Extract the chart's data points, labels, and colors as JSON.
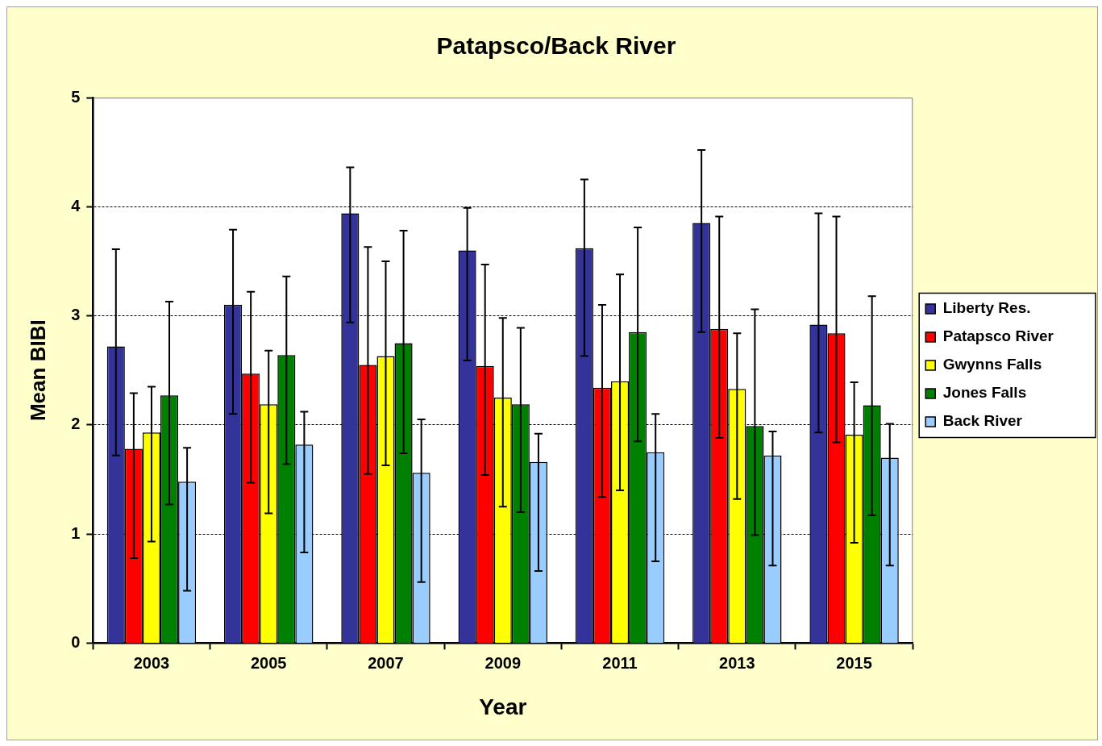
{
  "chart_data": {
    "type": "bar",
    "title": "Patapsco/Back River",
    "xlabel": "Year",
    "ylabel": "Mean BIBI",
    "categories": [
      "2003",
      "2005",
      "2007",
      "2009",
      "2011",
      "2013",
      "2015"
    ],
    "series": [
      {
        "name": "Liberty Res.",
        "color": "#333399",
        "values": [
          2.72,
          3.1,
          3.94,
          3.6,
          3.62,
          3.85,
          2.92
        ],
        "errors": [
          [
            1.72,
            3.61
          ],
          [
            2.1,
            3.79
          ],
          [
            2.94,
            4.36
          ],
          [
            2.59,
            3.99
          ],
          [
            2.63,
            4.25
          ],
          [
            2.85,
            4.52
          ],
          [
            1.93,
            3.94
          ]
        ]
      },
      {
        "name": "Patapsco River",
        "color": "#ff0000",
        "values": [
          1.78,
          2.47,
          2.55,
          2.54,
          2.34,
          2.88,
          2.84
        ],
        "errors": [
          [
            0.78,
            2.29
          ],
          [
            1.47,
            3.22
          ],
          [
            1.55,
            3.63
          ],
          [
            1.54,
            3.47
          ],
          [
            1.34,
            3.1
          ],
          [
            1.88,
            3.91
          ],
          [
            1.84,
            3.91
          ]
        ]
      },
      {
        "name": "Gwynns Falls",
        "color": "#ffff00",
        "values": [
          1.93,
          2.19,
          2.63,
          2.25,
          2.4,
          2.33,
          1.91
        ],
        "errors": [
          [
            0.93,
            2.35
          ],
          [
            1.19,
            2.68
          ],
          [
            1.63,
            3.5
          ],
          [
            1.25,
            2.98
          ],
          [
            1.4,
            3.38
          ],
          [
            1.32,
            2.84
          ],
          [
            0.92,
            2.39
          ]
        ]
      },
      {
        "name": "Jones Falls",
        "color": "#008000",
        "values": [
          2.27,
          2.64,
          2.75,
          2.19,
          2.85,
          1.99,
          2.18
        ],
        "errors": [
          [
            1.27,
            3.13
          ],
          [
            1.64,
            3.36
          ],
          [
            1.74,
            3.78
          ],
          [
            1.2,
            2.89
          ],
          [
            1.85,
            3.81
          ],
          [
            0.99,
            3.06
          ],
          [
            1.17,
            3.18
          ]
        ]
      },
      {
        "name": "Back River",
        "color": "#99ccff",
        "values": [
          1.48,
          1.82,
          1.56,
          1.66,
          1.75,
          1.72,
          1.7
        ],
        "errors": [
          [
            0.48,
            1.79
          ],
          [
            0.83,
            2.12
          ],
          [
            0.56,
            2.05
          ],
          [
            0.66,
            1.92
          ],
          [
            0.75,
            2.1
          ],
          [
            0.71,
            1.94
          ],
          [
            0.71,
            2.01
          ]
        ]
      }
    ],
    "ylim": [
      0,
      5
    ],
    "yticks": [
      0,
      1,
      2,
      3,
      4,
      5
    ],
    "grid": "y",
    "legend": "right"
  }
}
